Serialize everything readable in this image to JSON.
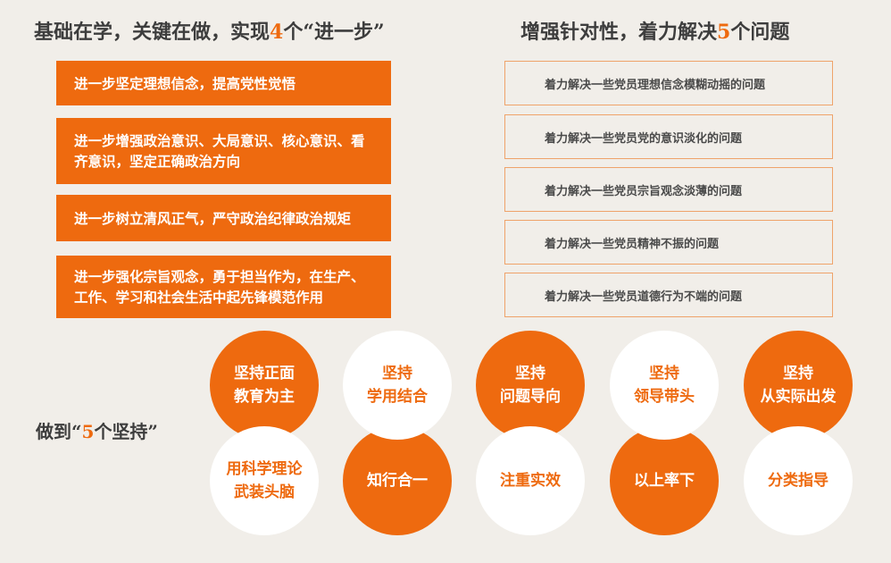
{
  "left_title": {
    "prefix": "基础在学，关键在做，实现",
    "number": "4",
    "suffix": "个“进一步”"
  },
  "right_title": {
    "prefix": "增强针对性，着力解决",
    "number": "5",
    "suffix": "个问题"
  },
  "left_items": [
    "进一步坚定理想信念，提高党性觉悟",
    "进一步增强政治意识、大局意识、核心意识、看齐意识，坚定正确政治方向",
    "进一步树立清风正气，严守政治纪律政治规矩",
    "进一步强化宗旨观念，勇于担当作为，在生产、工作、学习和社会生活中起先锋模范作用"
  ],
  "right_items": [
    "着力解决一些党员理想信念模糊动摇的问题",
    "着力解决一些党员党的意识淡化的问题",
    "着力解决一些党员宗旨观念淡薄的问题",
    "着力解决一些党员精神不振的问题",
    "着力解决一些党员道德行为不端的问题"
  ],
  "side_label": {
    "prefix": "做到“",
    "number": "5",
    "suffix": "个坚持”"
  },
  "top_circles": [
    {
      "line1": "坚持正面",
      "line2": "教育为主",
      "style": "orange"
    },
    {
      "line1": "坚持",
      "line2": "学用结合",
      "style": "white"
    },
    {
      "line1": "坚持",
      "line2": "问题导向",
      "style": "orange"
    },
    {
      "line1": "坚持",
      "line2": "领导带头",
      "style": "white"
    },
    {
      "line1": "坚持",
      "line2": "从实际出发",
      "style": "orange"
    }
  ],
  "bottom_circles": [
    {
      "line1": "用科学理论",
      "line2": "武装头脑",
      "style": "white"
    },
    {
      "line1": "知行合一",
      "line2": "",
      "style": "orange"
    },
    {
      "line1": "注重实效",
      "line2": "",
      "style": "white"
    },
    {
      "line1": "以上率下",
      "line2": "",
      "style": "orange"
    },
    {
      "line1": "分类指导",
      "line2": "",
      "style": "white"
    }
  ],
  "colors": {
    "accent": "#ee6a0f",
    "background": "#f1eee9",
    "border": "#efa36a"
  }
}
